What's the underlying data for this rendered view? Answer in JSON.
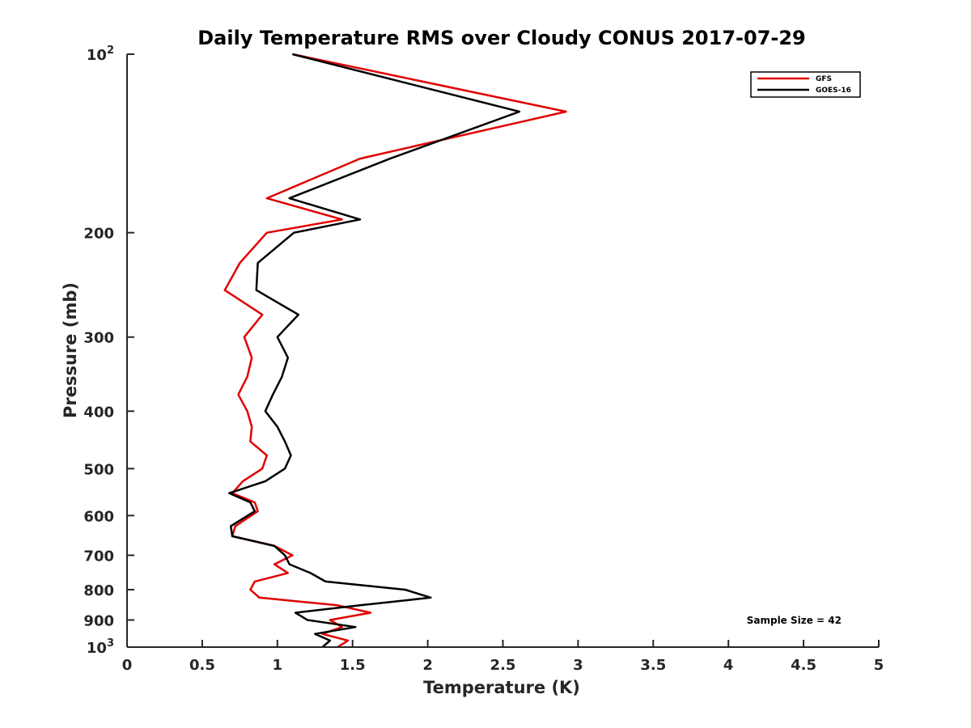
{
  "chart_data": {
    "type": "line",
    "title": "Daily Temperature RMS over Cloudy CONUS 2017-07-29",
    "xlabel": "Temperature (K)",
    "ylabel": "Pressure (mb)",
    "xlim": [
      0,
      5
    ],
    "ylim": [
      1000,
      100
    ],
    "y_scale": "log",
    "y_reversed": true,
    "grid": false,
    "legend_position": "top-right",
    "x_ticks": [
      "0",
      "0.5",
      "1",
      "1.5",
      "2",
      "2.5",
      "3",
      "3.5",
      "4",
      "4.5",
      "5"
    ],
    "y_ticks": [
      {
        "value": 100,
        "base": "10",
        "exp": "2"
      },
      {
        "value": 200,
        "label": "200"
      },
      {
        "value": 300,
        "label": "300"
      },
      {
        "value": 400,
        "label": "400"
      },
      {
        "value": 500,
        "label": "500"
      },
      {
        "value": 600,
        "label": "600"
      },
      {
        "value": 700,
        "label": "700"
      },
      {
        "value": 800,
        "label": "800"
      },
      {
        "value": 900,
        "label": "900"
      },
      {
        "value": 1000,
        "base": "10",
        "exp": "3"
      }
    ],
    "series": [
      {
        "name": "GFS",
        "color": "#e00000",
        "points": [
          [
            1.1,
            100
          ],
          [
            2.92,
            125
          ],
          [
            1.55,
            150
          ],
          [
            0.93,
            175
          ],
          [
            1.43,
            190
          ],
          [
            0.93,
            200
          ],
          [
            0.75,
            225
          ],
          [
            0.65,
            250
          ],
          [
            0.9,
            275
          ],
          [
            0.78,
            300
          ],
          [
            0.83,
            325
          ],
          [
            0.8,
            350
          ],
          [
            0.74,
            375
          ],
          [
            0.8,
            400
          ],
          [
            0.83,
            425
          ],
          [
            0.82,
            450
          ],
          [
            0.93,
            475
          ],
          [
            0.9,
            500
          ],
          [
            0.77,
            525
          ],
          [
            0.7,
            550
          ],
          [
            0.85,
            570
          ],
          [
            0.87,
            590
          ],
          [
            0.72,
            625
          ],
          [
            0.7,
            650
          ],
          [
            0.98,
            675
          ],
          [
            1.1,
            700
          ],
          [
            0.98,
            725
          ],
          [
            1.07,
            750
          ],
          [
            0.85,
            775
          ],
          [
            0.82,
            800
          ],
          [
            0.88,
            825
          ],
          [
            1.4,
            850
          ],
          [
            1.62,
            875
          ],
          [
            1.35,
            900
          ],
          [
            1.43,
            925
          ],
          [
            1.3,
            950
          ],
          [
            1.47,
            975
          ],
          [
            1.4,
            1000
          ]
        ]
      },
      {
        "name": "GOES-16",
        "color": "#000000",
        "points": [
          [
            1.1,
            100
          ],
          [
            2.61,
            125
          ],
          [
            1.75,
            150
          ],
          [
            1.08,
            175
          ],
          [
            1.55,
            190
          ],
          [
            1.11,
            200
          ],
          [
            0.87,
            225
          ],
          [
            0.86,
            250
          ],
          [
            1.14,
            275
          ],
          [
            1.0,
            300
          ],
          [
            1.07,
            325
          ],
          [
            1.03,
            350
          ],
          [
            0.97,
            375
          ],
          [
            0.92,
            400
          ],
          [
            1.0,
            425
          ],
          [
            1.05,
            450
          ],
          [
            1.09,
            475
          ],
          [
            1.05,
            500
          ],
          [
            0.92,
            525
          ],
          [
            0.68,
            550
          ],
          [
            0.82,
            570
          ],
          [
            0.85,
            590
          ],
          [
            0.69,
            625
          ],
          [
            0.7,
            650
          ],
          [
            0.98,
            675
          ],
          [
            1.05,
            700
          ],
          [
            1.08,
            725
          ],
          [
            1.22,
            750
          ],
          [
            1.32,
            775
          ],
          [
            1.85,
            800
          ],
          [
            2.02,
            825
          ],
          [
            1.55,
            850
          ],
          [
            1.12,
            875
          ],
          [
            1.2,
            900
          ],
          [
            1.52,
            925
          ],
          [
            1.25,
            950
          ],
          [
            1.35,
            975
          ],
          [
            1.3,
            1000
          ]
        ]
      }
    ],
    "annotations": [
      {
        "text": "Sample Size = 42",
        "position": "bottom-right"
      }
    ]
  }
}
